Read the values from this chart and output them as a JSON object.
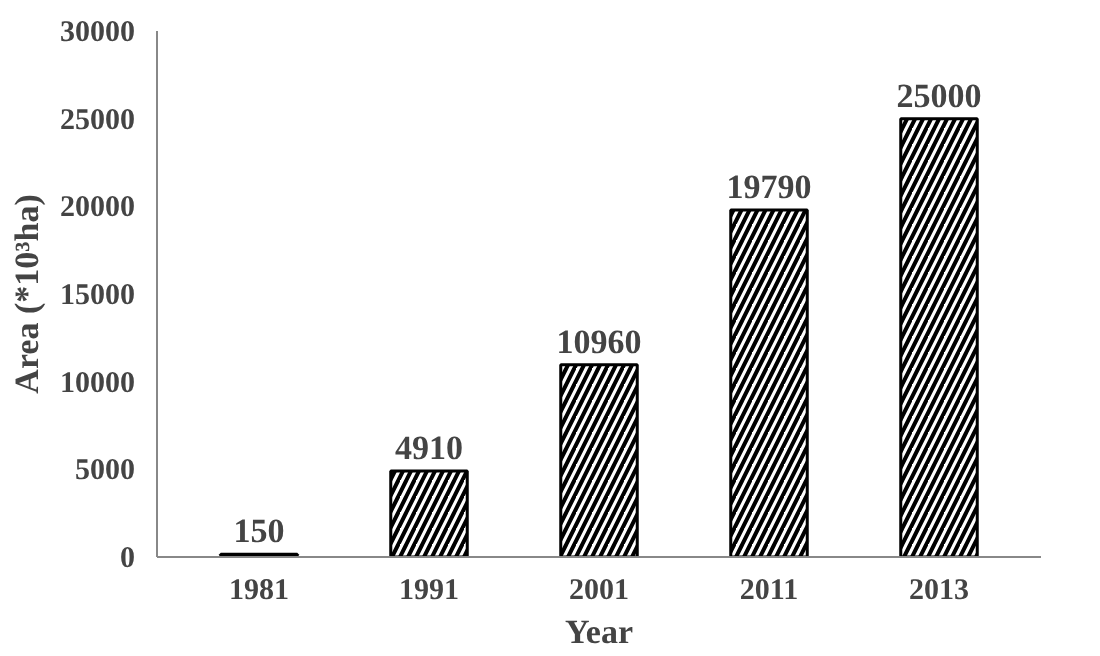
{
  "chart_data": {
    "type": "bar",
    "xlabel": "Year",
    "ylabel": "Area (*10³ha)",
    "categories": [
      "1981",
      "1991",
      "2001",
      "2011",
      "2013"
    ],
    "values": [
      150,
      4910,
      10960,
      19790,
      25000
    ],
    "color": "#000000",
    "ylim": [
      0,
      30000
    ],
    "yticks": [
      0,
      5000,
      10000,
      15000,
      20000,
      25000,
      30000
    ],
    "data_labels": true,
    "grid": false
  }
}
